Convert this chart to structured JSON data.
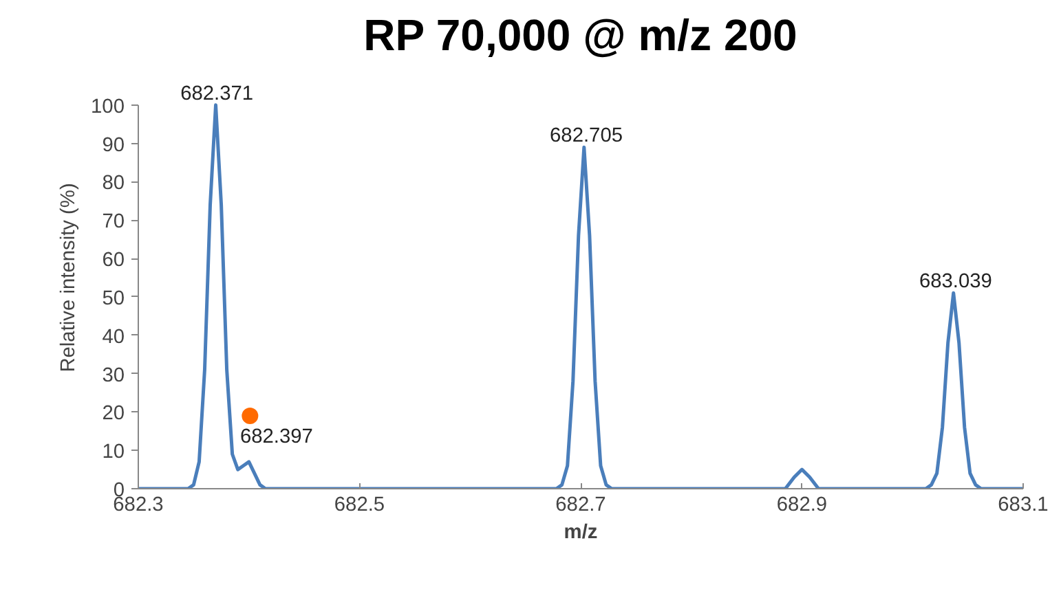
{
  "chart_data": {
    "type": "line",
    "title": "RP 70,000 @ m/z 200",
    "xlabel": "m/z",
    "ylabel": "Relative intensity (%)",
    "xlim": [
      682.3,
      683.1
    ],
    "xticks": [
      682.3,
      682.5,
      682.7,
      682.9,
      683.1
    ],
    "ylim": [
      0,
      100
    ],
    "yticks": [
      0,
      10,
      20,
      30,
      40,
      50,
      60,
      70,
      80,
      90,
      100
    ],
    "grid": false,
    "series": [
      {
        "color": "#4a7ebb",
        "x": [
          682.3,
          682.345,
          682.35,
          682.355,
          682.36,
          682.365,
          682.37,
          682.375,
          682.38,
          682.385,
          682.39,
          682.395,
          682.4,
          682.405,
          682.41,
          682.415,
          682.678,
          682.683,
          682.688,
          682.693,
          682.698,
          682.703,
          682.708,
          682.713,
          682.718,
          682.723,
          682.728,
          682.885,
          682.893,
          682.9,
          682.907,
          682.915,
          683.012,
          683.017,
          683.022,
          683.027,
          683.032,
          683.037,
          683.042,
          683.047,
          683.052,
          683.057,
          683.062,
          683.1
        ],
        "values": [
          0,
          0,
          1,
          7,
          31,
          74,
          100,
          74,
          31,
          9,
          5,
          6,
          7,
          4,
          1,
          0,
          0,
          1,
          6,
          28,
          66,
          89,
          66,
          28,
          6,
          1,
          0,
          0,
          3,
          5,
          3,
          0,
          0,
          1,
          4,
          16,
          38,
          51,
          38,
          16,
          4,
          1,
          0,
          0
        ]
      },
      {
        "type": "scatter",
        "color": "#ff6a00",
        "marker": "circle",
        "x": [
          682.401
        ],
        "values": [
          19
        ]
      }
    ],
    "annotations": [
      {
        "text": "682.371",
        "x": 682.371,
        "y": 100
      },
      {
        "text": "682.397",
        "x": 682.397,
        "y": 7
      },
      {
        "text": "682.705",
        "x": 682.705,
        "y": 89
      },
      {
        "text": "683.039",
        "x": 683.039,
        "y": 51
      }
    ]
  }
}
